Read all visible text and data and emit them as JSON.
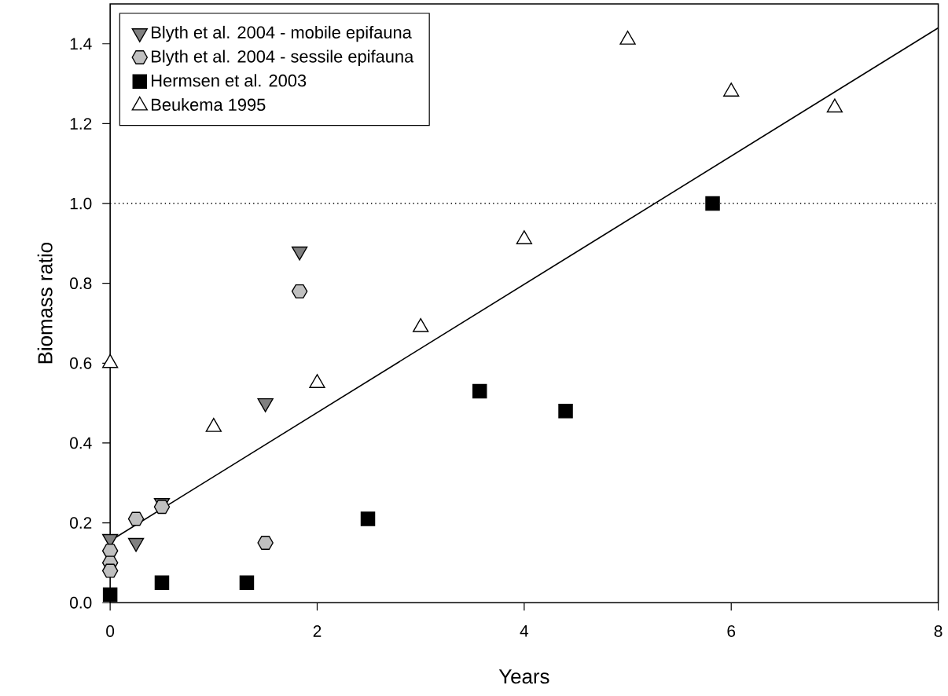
{
  "chart_data": {
    "type": "scatter",
    "xlabel": "Years",
    "ylabel": "Biomass ratio",
    "xlim": [
      0,
      8
    ],
    "ylim": [
      0,
      1.5
    ],
    "xticks": [
      0,
      2,
      4,
      6,
      8
    ],
    "yticks": [
      {
        "value": 0,
        "label": "0.0"
      },
      {
        "value": 0.2,
        "label": "0.2"
      },
      {
        "value": 0.4,
        "label": "0.4"
      },
      {
        "value": 0.6,
        "label": "0.6"
      },
      {
        "value": 0.8,
        "label": "0.8"
      },
      {
        "value": 1.0,
        "label": "1.0"
      },
      {
        "value": 1.2,
        "label": "1.2"
      },
      {
        "value": 1.4,
        "label": "1.4"
      }
    ],
    "grid": false,
    "legend": "top left",
    "ref_lines": [
      {
        "axis": "y",
        "value": 1.0,
        "color": "#000000",
        "line_style": "dotted"
      }
    ],
    "series": [
      {
        "name": "Blyth et al. 2004 - mobile epifauna",
        "color": "#808080",
        "marker": "triangle_down",
        "x": [
          0,
          0.25,
          0.5,
          1.5,
          1.83
        ],
        "values": [
          0.16,
          0.15,
          0.25,
          0.5,
          0.88
        ]
      },
      {
        "name": "Blyth et al. 2004 - sessile epifauna",
        "color": "#c0c0c0",
        "x": [
          0,
          0,
          0,
          0.25,
          0.5,
          1.5,
          1.83
        ],
        "values": [
          0.13,
          0.1,
          0.08,
          0.21,
          0.24,
          0.15,
          0.78
        ]
      },
      {
        "name": "Hermsen et al. 2003",
        "color": "#000000",
        "marker": "square",
        "x": [
          0,
          0.5,
          1.32,
          2.49,
          3.57,
          4.4,
          5.82
        ],
        "values": [
          0.02,
          0.05,
          0.05,
          0.21,
          0.53,
          0.48,
          1.0
        ]
      },
      {
        "name": "Beukema 1995",
        "color": "#ffffff",
        "marker": "triangle",
        "x": [
          0,
          1,
          2,
          3,
          4,
          5,
          6,
          7
        ],
        "values": [
          0.6,
          0.44,
          0.55,
          0.69,
          0.91,
          1.41,
          1.28,
          1.24
        ]
      },
      {
        "type": "line",
        "color": "#000000",
        "marker": "none",
        "line_style": "solid",
        "x": [
          0,
          8
        ],
        "values": [
          0.155,
          1.44
        ]
      }
    ]
  }
}
